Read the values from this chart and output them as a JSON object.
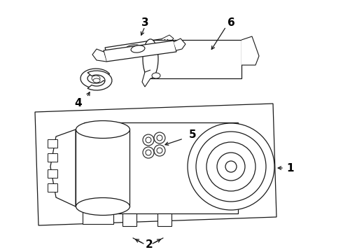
{
  "bg_color": "#ffffff",
  "line_color": "#1a1a1a",
  "label_color": "#000000",
  "lw": 0.9,
  "label_fontsize": 10,
  "label_fontweight": "bold",
  "figw": 4.9,
  "figh": 3.6,
  "dpi": 100
}
